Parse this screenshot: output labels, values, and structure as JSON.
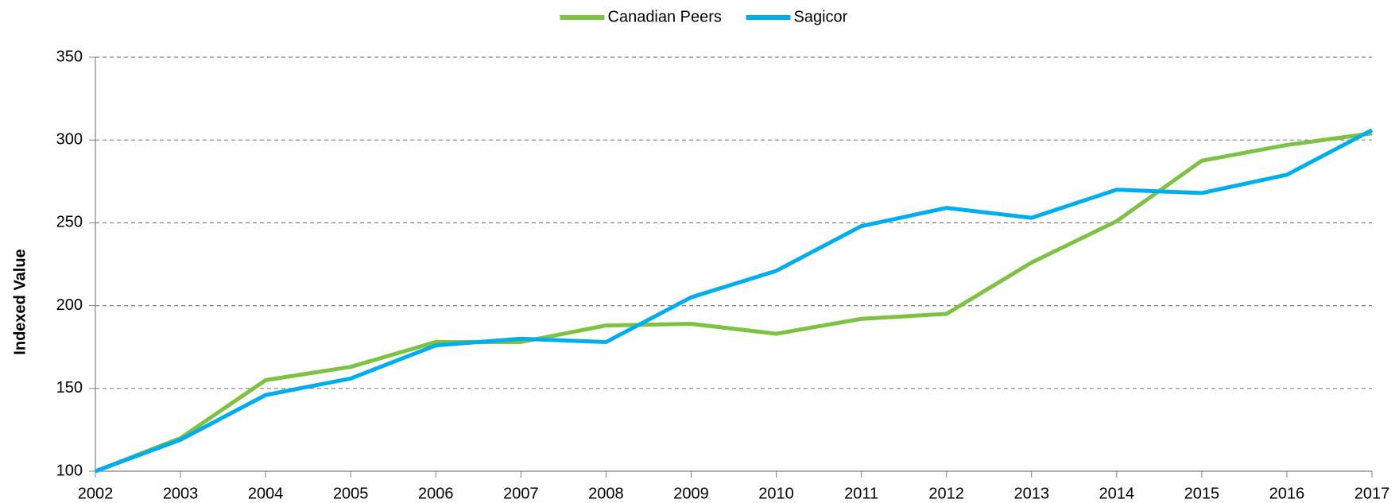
{
  "chart_data": {
    "type": "line",
    "y_label": "Indexed Value",
    "x": [
      2002,
      2003,
      2004,
      2005,
      2006,
      2007,
      2008,
      2009,
      2010,
      2011,
      2012,
      2013,
      2014,
      2015,
      2016,
      2017
    ],
    "series": [
      {
        "name": "Canadian Peers",
        "color": "#7dc242",
        "values": [
          100,
          120,
          155,
          163,
          178,
          178,
          188,
          189,
          183,
          192,
          195,
          226,
          251,
          287.5,
          297,
          304
        ]
      },
      {
        "name": "Sagicor",
        "color": "#00aeef",
        "values": [
          100,
          119,
          146,
          156,
          176,
          180,
          178,
          205,
          221,
          248,
          259,
          253,
          270,
          268,
          279,
          306
        ]
      }
    ],
    "xlim": [
      2002,
      2017
    ],
    "xticks": [
      2002,
      2003,
      2004,
      2005,
      2006,
      2007,
      2008,
      2009,
      2010,
      2011,
      2012,
      2013,
      2014,
      2015,
      2016,
      2017
    ],
    "ylim": [
      100,
      350
    ],
    "yticks": [
      100,
      150,
      200,
      250,
      300,
      350
    ],
    "grid": true,
    "legend": "top"
  }
}
